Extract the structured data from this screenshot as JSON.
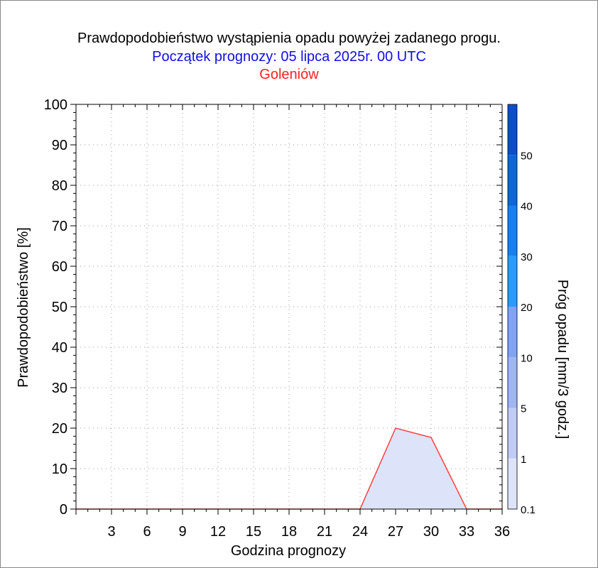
{
  "title": "Prawdopodobieństwo wystąpienia opadu powyżej zadanego progu.",
  "subtitle": "Początek prognozy: 05 lipca 2025r. 00 UTC",
  "location": "Goleniów",
  "chart_data": {
    "type": "area",
    "xlabel": "Godzina prognozy",
    "ylabel": "Prawdopodobieństwo [%]",
    "xlim": [
      0,
      36
    ],
    "ylim": [
      0,
      100
    ],
    "x_ticks": [
      3,
      6,
      9,
      12,
      15,
      18,
      21,
      24,
      27,
      30,
      33,
      36
    ],
    "y_ticks": [
      0,
      10,
      20,
      30,
      40,
      50,
      60,
      70,
      80,
      90,
      100
    ],
    "grid": true,
    "series": [
      {
        "threshold": "0.1",
        "color": "#dde4fa",
        "line_color": "#ff4040",
        "x": [
          0,
          3,
          6,
          9,
          12,
          15,
          18,
          21,
          24,
          27,
          30,
          33,
          36
        ],
        "values": [
          0,
          0,
          0,
          0,
          0,
          0,
          0,
          0,
          0,
          20,
          17.7,
          0,
          0
        ]
      }
    ],
    "colorbar": {
      "label": "Próg opadu [mm/3 godz.]",
      "tick_labels": [
        "0.1",
        "1",
        "5",
        "10",
        "20",
        "30",
        "40",
        "50"
      ],
      "colors": [
        "#dde4fa",
        "#c0ccf7",
        "#9eb6f5",
        "#7ea4f3",
        "#2a9aff",
        "#1880ee",
        "#0e66d8",
        "#0a4ec8",
        "#0030a8"
      ]
    }
  }
}
